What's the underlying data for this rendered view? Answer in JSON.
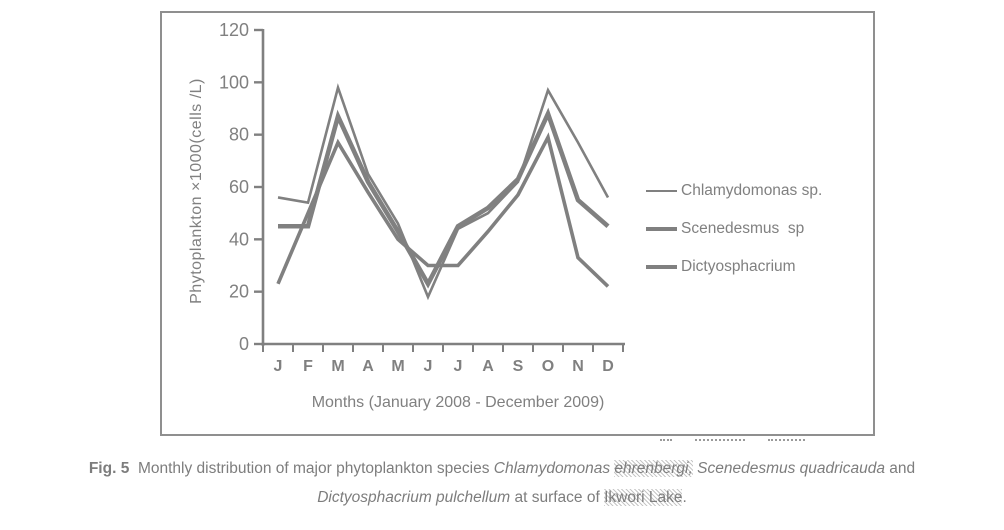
{
  "chart_data": {
    "type": "line",
    "title": "",
    "xlabel": "Months (January 2008 - December 2009)",
    "ylabel": "Phytoplankton ×1000(cells /L)",
    "x_categories": [
      "J",
      "F",
      "M",
      "A",
      "M",
      "J",
      "J",
      "A",
      "S",
      "O",
      "N",
      "D"
    ],
    "yticks": [
      0,
      20,
      40,
      60,
      80,
      100,
      120
    ],
    "ylim": [
      0,
      120
    ],
    "grid": false,
    "legend_position": "right",
    "line_color": "#808080",
    "axis_color": "#808080",
    "series": [
      {
        "name": "Chlamydomonas sp.",
        "stroke_width": 2.6,
        "values": [
          56,
          54,
          98,
          65,
          46,
          18,
          44,
          50,
          62,
          97,
          77,
          56
        ]
      },
      {
        "name": "Scenedesmus  sp",
        "stroke_width": 4.6,
        "values": [
          45,
          45,
          87,
          62,
          43,
          23,
          45,
          52,
          63,
          88,
          55,
          45
        ]
      },
      {
        "name": "Dictyosphacrium",
        "stroke_width": 3.6,
        "values": [
          23,
          50,
          77,
          58,
          40,
          30,
          30,
          43,
          57,
          79,
          33,
          22
        ]
      }
    ]
  },
  "caption": {
    "fig": "Fig. 5",
    "part1": "  Monthly distribution of major phytoplankton species ",
    "sp1a": "Chlamydomonas ",
    "sp1b": "ehrenbergi,",
    "part2": " ",
    "sp2": "Scenedesmus quadricauda",
    "part3": " and",
    "sp3": "Dictyosphacrium pulchellum",
    "part4": " at surface of ",
    "loc": "Ikwori Lake",
    "part5": "."
  }
}
